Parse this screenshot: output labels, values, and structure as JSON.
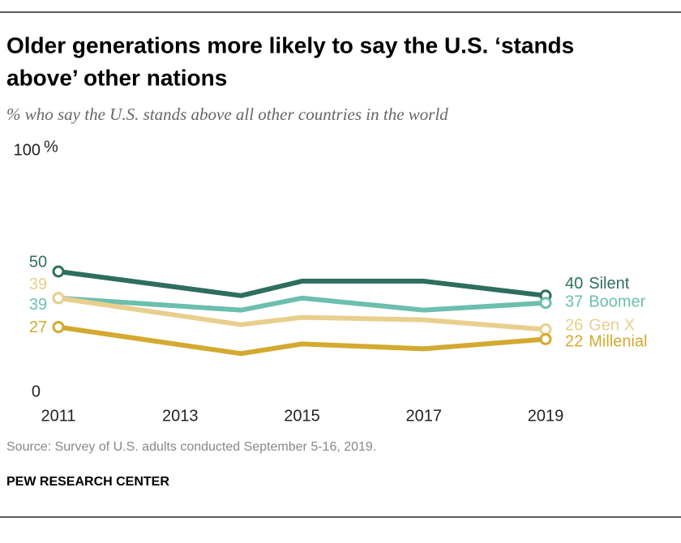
{
  "chart_data": {
    "type": "line",
    "title_lines": [
      "Older generations more likely to say the U.S. ‘stands",
      "above’ other nations"
    ],
    "subtitle": "% who say the U.S. stands above all other countries in the world",
    "y_unit": "%",
    "x": [
      2011,
      2014,
      2015,
      2017,
      2019
    ],
    "xlim": [
      2011,
      2019
    ],
    "xticks": [
      2011,
      2013,
      2015,
      2017,
      2019
    ],
    "ylim": [
      0,
      100
    ],
    "yticks": [
      0,
      100
    ],
    "grid": false,
    "series": [
      {
        "name": "Silent",
        "color": "#2e6e5e",
        "values": [
          50,
          40,
          46,
          46,
          40
        ]
      },
      {
        "name": "Boomer",
        "color": "#6cbfae",
        "values": [
          39,
          34,
          39,
          34,
          37
        ]
      },
      {
        "name": "Gen X",
        "color": "#e8cf8e",
        "values": [
          39,
          28,
          31,
          30,
          26
        ]
      },
      {
        "name": "Millenial",
        "color": "#d4a92f",
        "values": [
          27,
          16,
          20,
          18,
          22
        ]
      }
    ],
    "source": "Source: Survey of U.S. adults conducted September 5-16, 2019.",
    "organization": "PEW RESEARCH CENTER"
  }
}
